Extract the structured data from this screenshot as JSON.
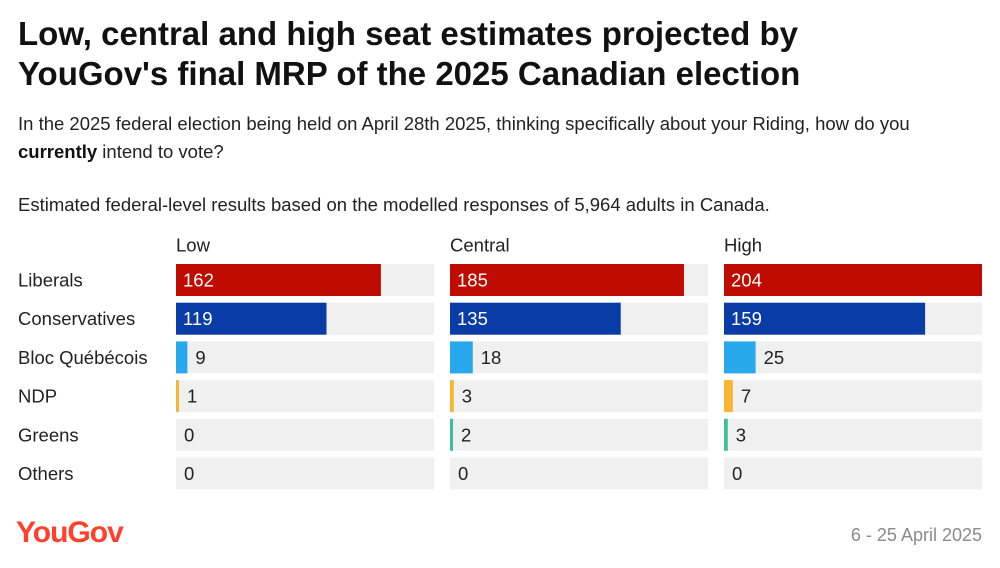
{
  "title_line1": "Low, central and high seat estimates projected by",
  "title_line2": "YouGov's final MRP of the 2025 Canadian election",
  "question_pre": "In the 2025 federal election being held on April 28th 2025, thinking specifically about your Riding, how do you ",
  "question_bold": "currently",
  "question_post": " intend to vote?",
  "basis": "Estimated federal-level results based on the modelled responses of 5,964 adults in Canada.",
  "footer": {
    "logo": "YouGov",
    "date": "6 - 25 April 2025"
  },
  "colors": {
    "Liberals": "#c00c00",
    "Conservatives": "#0a3ca8",
    "Bloc Québécois": "#27a8ec",
    "NDP": "#f7b531",
    "Greens": "#3dbf9f",
    "Others": "#9e9e9e",
    "track": "#f0f0f0",
    "brand": "#ff412c"
  },
  "chart_data": {
    "type": "bar",
    "orientation": "horizontal",
    "categories": [
      "Liberals",
      "Conservatives",
      "Bloc Québécois",
      "NDP",
      "Greens",
      "Others"
    ],
    "series": [
      {
        "name": "Low",
        "values": [
          162,
          119,
          9,
          1,
          0,
          0
        ]
      },
      {
        "name": "Central",
        "values": [
          185,
          135,
          18,
          3,
          2,
          0
        ]
      },
      {
        "name": "High",
        "values": [
          204,
          159,
          25,
          7,
          3,
          0
        ]
      }
    ],
    "xlim": [
      0,
      204
    ],
    "title": "Low, central and high seat estimates projected by YouGov's final MRP of the 2025 Canadian election",
    "xlabel": "",
    "ylabel": ""
  }
}
